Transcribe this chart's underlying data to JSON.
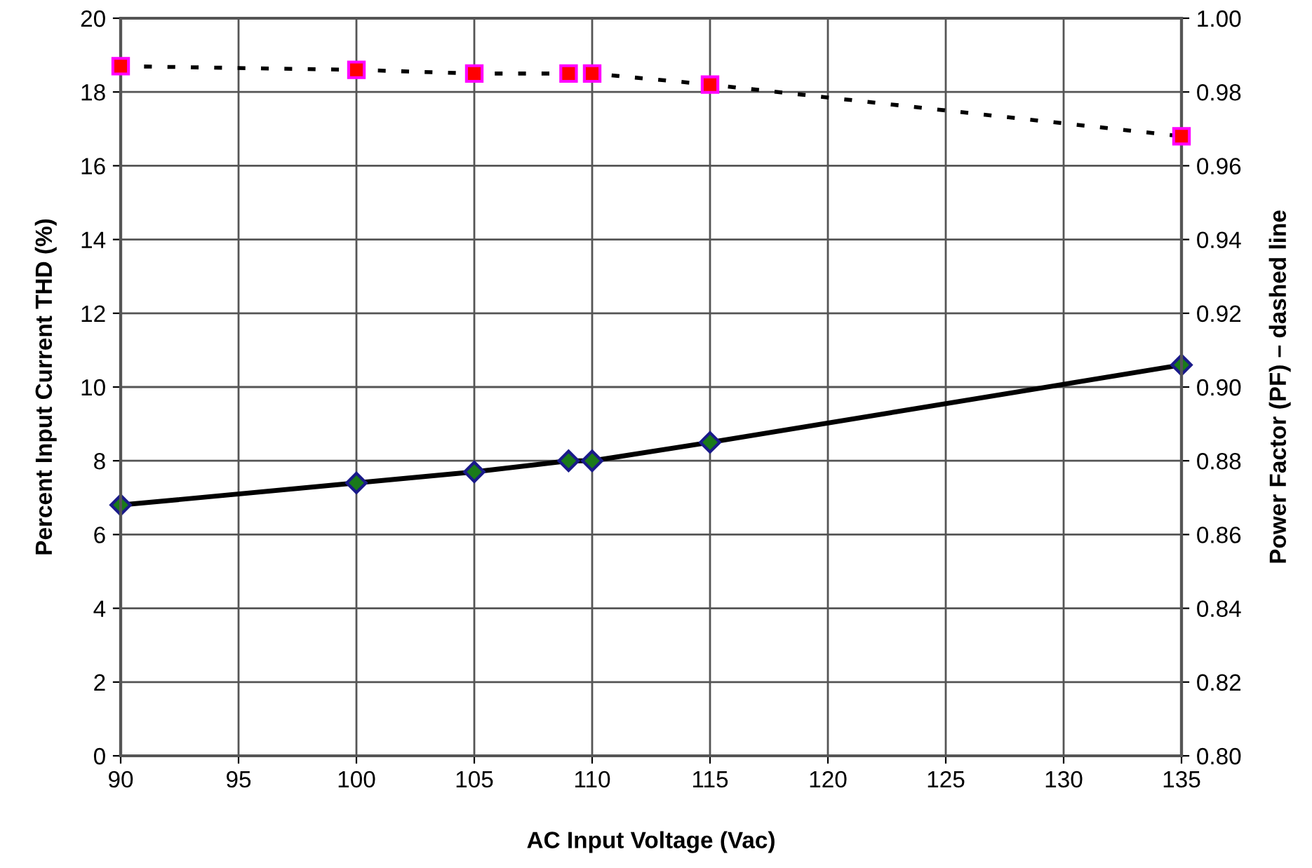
{
  "chart_data": {
    "type": "line",
    "xlabel": "AC Input Voltage (Vac)",
    "ylabel": "Percent Input Current THD (%)",
    "y2label": "Power Factor (PF) – dashed line",
    "x": [
      90,
      100,
      105,
      109,
      110,
      115,
      135
    ],
    "series": [
      {
        "color": "#000000",
        "values": [
          6.8,
          7.4,
          7.7,
          8.0,
          8.0,
          8.5,
          10.6
        ],
        "marker": "diamond",
        "line_style": "solid"
      },
      {
        "color": "#000000",
        "values": [
          0.987,
          0.986,
          0.985,
          0.985,
          0.985,
          0.982,
          0.968
        ],
        "marker": "square",
        "line_style": "dotted",
        "axis": "y2"
      }
    ],
    "xlim": [
      90,
      135
    ],
    "xticks": [
      90,
      95,
      100,
      105,
      110,
      115,
      120,
      125,
      130,
      135
    ],
    "ylim": [
      0,
      20
    ],
    "yticks": [
      0,
      2,
      4,
      6,
      8,
      10,
      12,
      14,
      16,
      18,
      20
    ],
    "y2lim": [
      0.8,
      1.0
    ],
    "y2ticks": [
      {
        "value": 0.8,
        "label": "0.80"
      },
      0.82,
      0.84,
      0.86,
      0.88,
      {
        "value": 0.9,
        "label": "0.90"
      },
      0.92,
      0.94,
      0.96,
      0.98,
      {
        "value": 1.0,
        "label": "1.00"
      }
    ],
    "grid": true,
    "legend": false
  }
}
